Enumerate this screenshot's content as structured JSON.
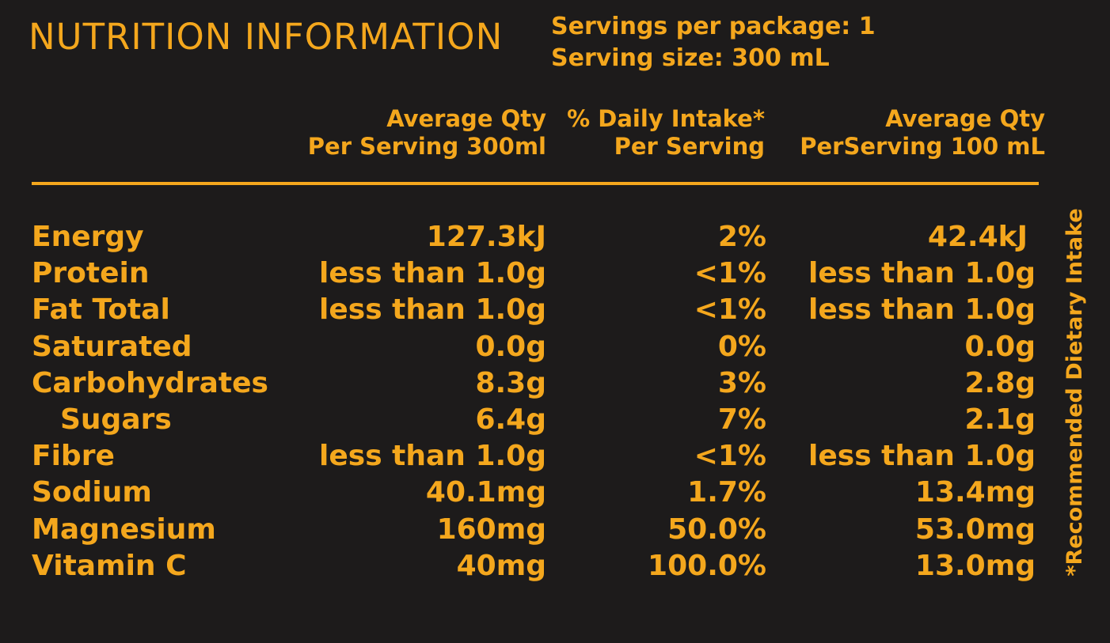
{
  "title": "NUTRITION INFORMATION",
  "servings_per_package": "Servings per package: 1",
  "serving_size": "Serving size: 300 mL",
  "columns": [
    {
      "line1": "Average Qty",
      "line2": "Per Serving 300ml"
    },
    {
      "line1": "% Daily Intake*",
      "line2": "Per Serving"
    },
    {
      "line1": "Average Qty",
      "line2": "PerServing 100 mL"
    }
  ],
  "rows": [
    {
      "name": "Energy",
      "per_serving": "127.3kJ",
      "daily_intake": "2%",
      "per_100ml": "42.4kJ"
    },
    {
      "name": "Protein",
      "per_serving": "less than 1.0g",
      "daily_intake": "<1%",
      "per_100ml": "less than 1.0g"
    },
    {
      "name": "Fat Total",
      "per_serving": "less than 1.0g",
      "daily_intake": "<1%",
      "per_100ml": "less than 1.0g"
    },
    {
      "name": "Saturated",
      "per_serving": "0.0g",
      "daily_intake": "0%",
      "per_100ml": "0.0g"
    },
    {
      "name": "Carbohydrates",
      "per_serving": "8.3g",
      "daily_intake": "3%",
      "per_100ml": "2.8g"
    },
    {
      "name": "Sugars",
      "per_serving": "6.4g",
      "daily_intake": "7%",
      "per_100ml": "2.1g"
    },
    {
      "name": "Fibre",
      "per_serving": "less than 1.0g",
      "daily_intake": "<1%",
      "per_100ml": "less than 1.0g"
    },
    {
      "name": "Sodium",
      "per_serving": "40.1mg",
      "daily_intake": "1.7%",
      "per_100ml": "13.4mg"
    },
    {
      "name": "Magnesium",
      "per_serving": "160mg",
      "daily_intake": "50.0%",
      "per_100ml": "53.0mg"
    },
    {
      "name": "Vitamin C",
      "per_serving": "40mg",
      "daily_intake": "100.0%",
      "per_100ml": "13.0mg"
    }
  ],
  "footnote": "*Recommended Dietary Intake",
  "colors": {
    "background": "#1d1b1b",
    "text": "#f4a71d"
  }
}
